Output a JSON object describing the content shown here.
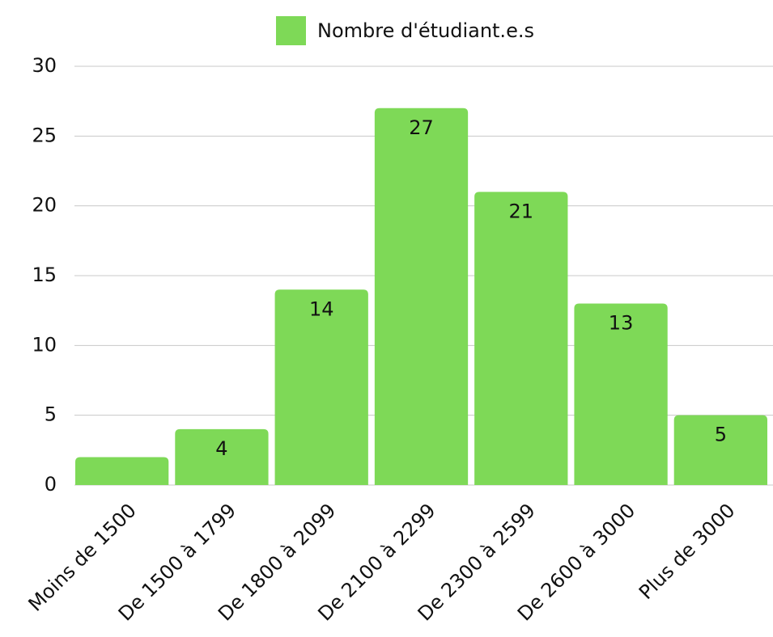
{
  "chart_data": {
    "type": "bar",
    "categories": [
      "Moins de 1500",
      "De 1500 à 1799",
      "De 1800 à 2099",
      "De 2100 à 2299",
      "De 2300 à 2599",
      "De 2600 à 3000",
      "Plus de 3000"
    ],
    "series": [
      {
        "name": "Nombre d'étudiant.e.s",
        "color": "#7ed957",
        "values": [
          2,
          4,
          14,
          27,
          21,
          13,
          5
        ]
      }
    ],
    "value_labels": [
      null,
      "4",
      "14",
      "27",
      "21",
      "13",
      "5"
    ],
    "ylim": [
      0,
      30
    ],
    "yticks": [
      0,
      5,
      10,
      15,
      20,
      25,
      30
    ],
    "grid": true,
    "legend": "top"
  }
}
